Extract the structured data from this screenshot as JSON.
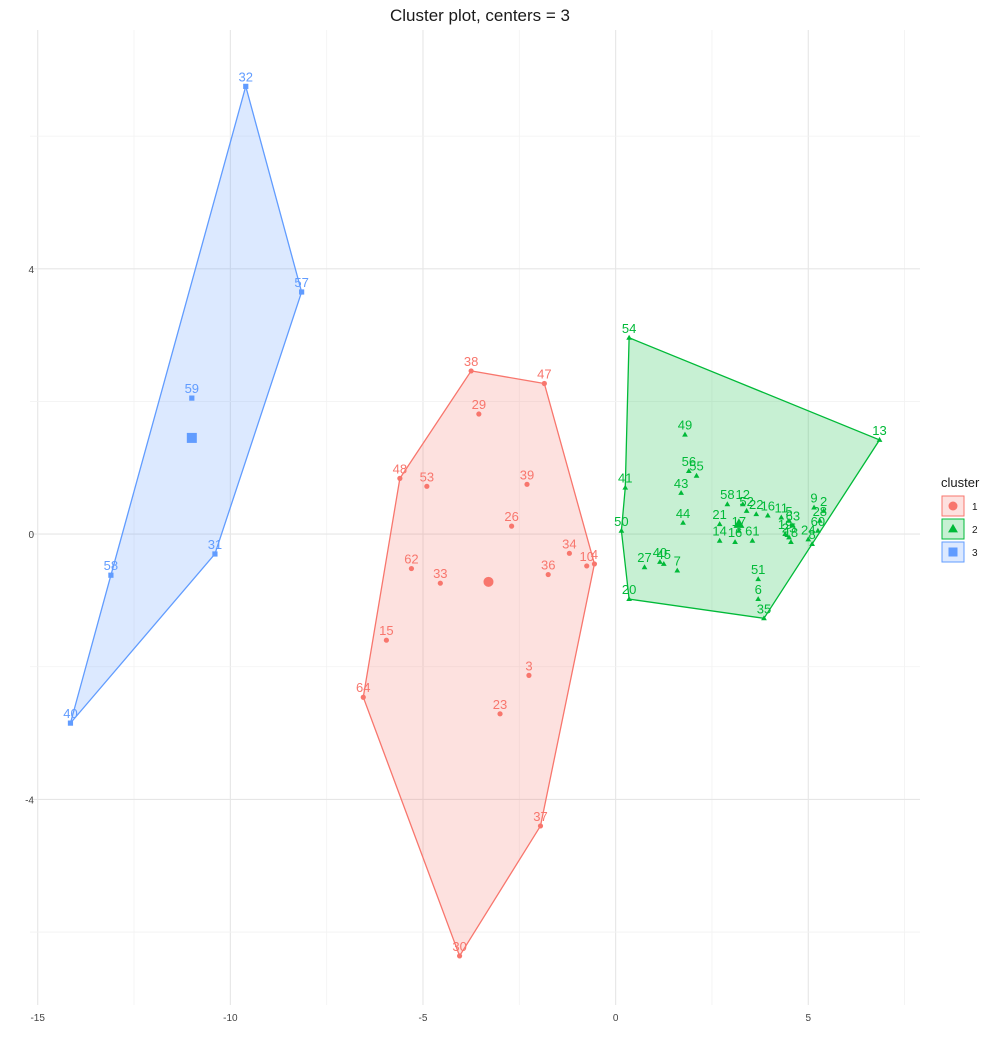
{
  "chart_data": {
    "type": "scatter",
    "title": "Cluster plot, centers = 3",
    "xlabel": "",
    "ylabel": "",
    "xlim": [
      -15.2,
      7.9
    ],
    "ylim": [
      -7.1,
      7.6
    ],
    "x_ticks": [
      -15,
      -10,
      -5,
      0,
      5
    ],
    "y_ticks": [
      -4,
      0,
      4
    ],
    "x_tick_labels": [
      "-15",
      "-10",
      "-5",
      "0",
      "5"
    ],
    "y_tick_labels": [
      "-4",
      "0",
      "4"
    ],
    "grid": true,
    "legend": {
      "title": "cluster",
      "position": "right",
      "entries": [
        {
          "label": "1",
          "color": "#F8766D",
          "shape": "circle"
        },
        {
          "label": "2",
          "color": "#00BA38",
          "shape": "triangle"
        },
        {
          "label": "3",
          "color": "#619CFF",
          "shape": "square"
        }
      ]
    },
    "series": [
      {
        "name": "1",
        "color": "#F8766D",
        "shape": "circle",
        "center": {
          "x": -3.3,
          "y": -0.72
        },
        "hull": [
          "38",
          "47",
          "4",
          "37",
          "30",
          "64",
          "48"
        ],
        "points": [
          {
            "label": "38",
            "x": -3.75,
            "y": 2.46
          },
          {
            "label": "47",
            "x": -1.85,
            "y": 2.27
          },
          {
            "label": "29",
            "x": -3.55,
            "y": 1.81
          },
          {
            "label": "48",
            "x": -5.6,
            "y": 0.84
          },
          {
            "label": "53",
            "x": -4.9,
            "y": 0.72
          },
          {
            "label": "39",
            "x": -2.3,
            "y": 0.75
          },
          {
            "label": "26",
            "x": -2.7,
            "y": 0.12
          },
          {
            "label": "34",
            "x": -1.2,
            "y": -0.29
          },
          {
            "label": "10",
            "x": -0.75,
            "y": -0.48
          },
          {
            "label": "4",
            "x": -0.55,
            "y": -0.45
          },
          {
            "label": "36",
            "x": -1.75,
            "y": -0.61
          },
          {
            "label": "62",
            "x": -5.3,
            "y": -0.52
          },
          {
            "label": "33",
            "x": -4.55,
            "y": -0.74
          },
          {
            "label": "15",
            "x": -5.95,
            "y": -1.6
          },
          {
            "label": "3",
            "x": -2.25,
            "y": -2.13
          },
          {
            "label": "64",
            "x": -6.55,
            "y": -2.46
          },
          {
            "label": "23",
            "x": -3.0,
            "y": -2.71
          },
          {
            "label": "37",
            "x": -1.95,
            "y": -4.4
          },
          {
            "label": "30",
            "x": -4.05,
            "y": -6.36
          }
        ]
      },
      {
        "name": "2",
        "color": "#00BA38",
        "shape": "triangle",
        "center": {
          "x": 3.2,
          "y": 0.15
        },
        "hull": [
          "54",
          "13",
          "35",
          "20",
          "50",
          "41"
        ],
        "points": [
          {
            "label": "54",
            "x": 0.35,
            "y": 2.96
          },
          {
            "label": "13",
            "x": 6.85,
            "y": 1.42
          },
          {
            "label": "49",
            "x": 1.8,
            "y": 1.5
          },
          {
            "label": "41",
            "x": 0.25,
            "y": 0.7
          },
          {
            "label": "56",
            "x": 1.9,
            "y": 0.95
          },
          {
            "label": "55",
            "x": 2.1,
            "y": 0.88
          },
          {
            "label": "43",
            "x": 1.7,
            "y": 0.62
          },
          {
            "label": "50",
            "x": 0.15,
            "y": 0.05
          },
          {
            "label": "44",
            "x": 1.75,
            "y": 0.17
          },
          {
            "label": "58",
            "x": 2.9,
            "y": 0.45
          },
          {
            "label": "12",
            "x": 3.3,
            "y": 0.45
          },
          {
            "label": "52",
            "x": 3.4,
            "y": 0.35
          },
          {
            "label": "22",
            "x": 3.65,
            "y": 0.3
          },
          {
            "label": "16",
            "x": 3.95,
            "y": 0.28
          },
          {
            "label": "11",
            "x": 4.3,
            "y": 0.25
          },
          {
            "label": "5",
            "x": 4.5,
            "y": 0.2
          },
          {
            "label": "21",
            "x": 2.7,
            "y": 0.15
          },
          {
            "label": "17",
            "x": 3.2,
            "y": 0.05
          },
          {
            "label": "63",
            "x": 4.6,
            "y": 0.13
          },
          {
            "label": "9",
            "x": 5.15,
            "y": 0.4
          },
          {
            "label": "2",
            "x": 5.4,
            "y": 0.35
          },
          {
            "label": "28",
            "x": 5.3,
            "y": 0.2
          },
          {
            "label": "60",
            "x": 5.25,
            "y": 0.05
          },
          {
            "label": "19",
            "x": 4.4,
            "y": 0.0
          },
          {
            "label": "25",
            "x": 4.5,
            "y": -0.05
          },
          {
            "label": "24",
            "x": 5.0,
            "y": -0.08
          },
          {
            "label": "18",
            "x": 4.55,
            "y": -0.12
          },
          {
            "label": "8",
            "x": 5.1,
            "y": -0.15
          },
          {
            "label": "14",
            "x": 2.7,
            "y": -0.1
          },
          {
            "label": "16",
            "x": 3.1,
            "y": -0.12
          },
          {
            "label": "61",
            "x": 3.55,
            "y": -0.1
          },
          {
            "label": "27",
            "x": 0.75,
            "y": -0.5
          },
          {
            "label": "40",
            "x": 1.15,
            "y": -0.42
          },
          {
            "label": "45",
            "x": 1.25,
            "y": -0.45
          },
          {
            "label": "7",
            "x": 1.6,
            "y": -0.55
          },
          {
            "label": "51",
            "x": 3.7,
            "y": -0.68
          },
          {
            "label": "6",
            "x": 3.7,
            "y": -0.98
          },
          {
            "label": "20",
            "x": 0.35,
            "y": -0.98
          },
          {
            "label": "35",
            "x": 3.85,
            "y": -1.27
          }
        ]
      },
      {
        "name": "3",
        "color": "#619CFF",
        "shape": "square",
        "center": {
          "x": -11.0,
          "y": 1.45
        },
        "hull": [
          "32",
          "57",
          "31",
          "40",
          "58"
        ],
        "points": [
          {
            "label": "32",
            "x": -9.6,
            "y": 6.75
          },
          {
            "label": "57",
            "x": -8.15,
            "y": 3.65
          },
          {
            "label": "59",
            "x": -11.0,
            "y": 2.05
          },
          {
            "label": "31",
            "x": -10.4,
            "y": -0.3
          },
          {
            "label": "58",
            "x": -13.1,
            "y": -0.62
          },
          {
            "label": "40",
            "x": -14.15,
            "y": -2.85
          }
        ]
      }
    ]
  }
}
